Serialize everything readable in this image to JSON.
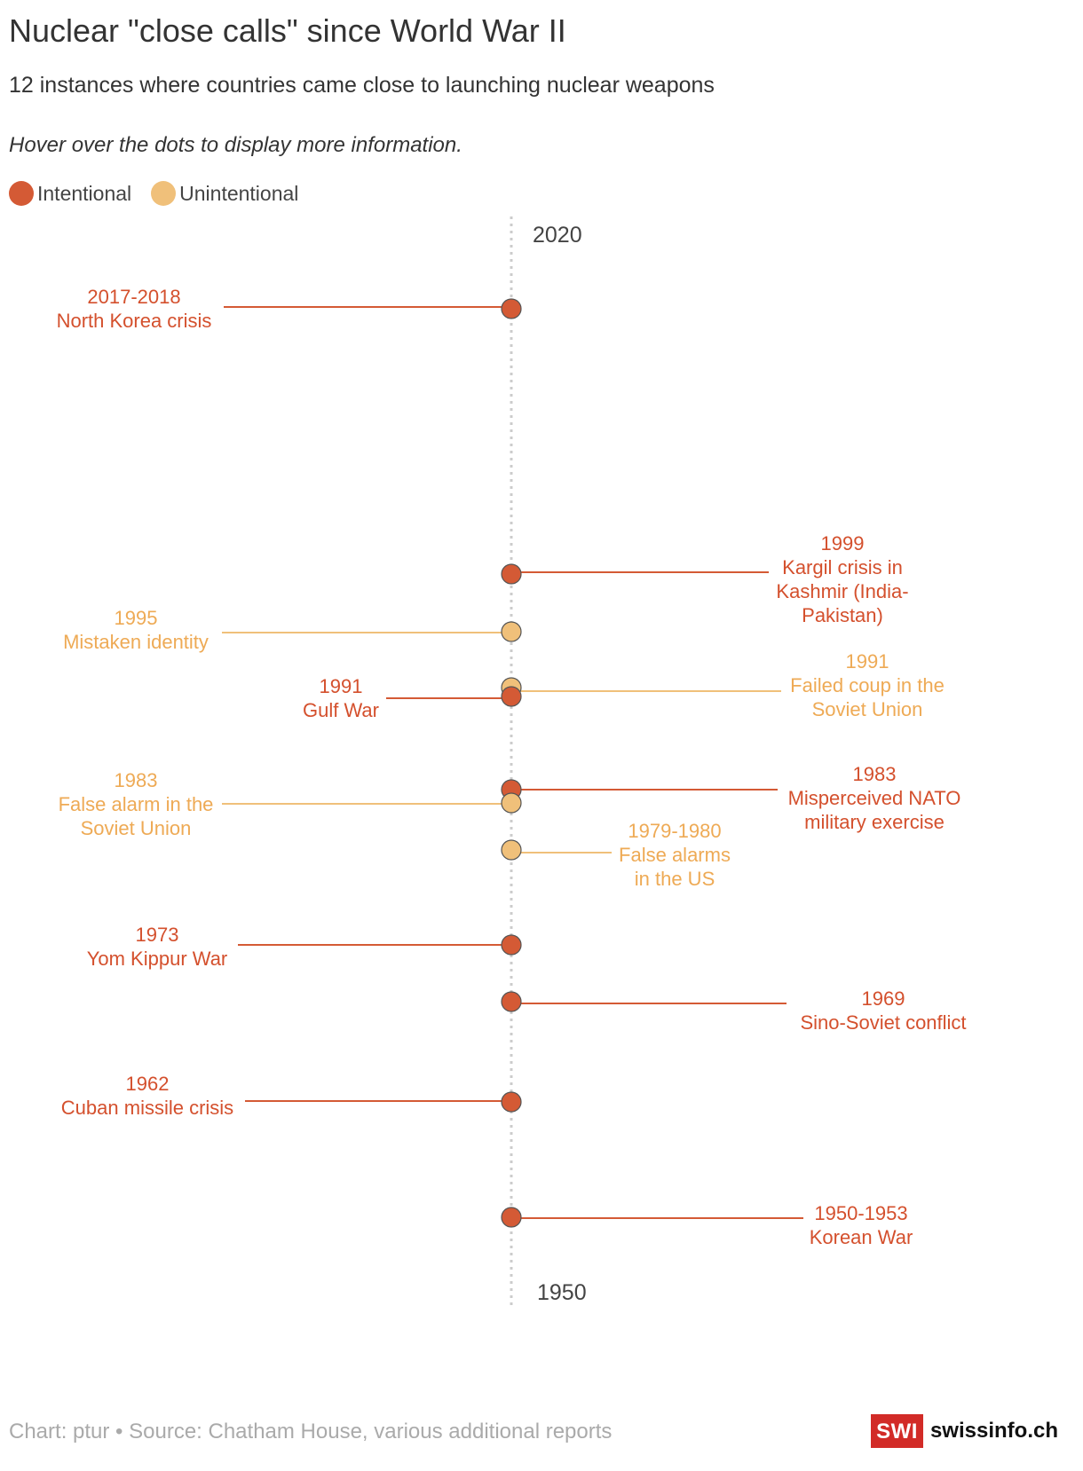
{
  "header": {
    "title": "Nuclear \"close calls\" since World War II",
    "subtitle": "12 instances where countries came close to launching nuclear weapons",
    "note": "Hover over the dots to display more information."
  },
  "legend": {
    "intentional_label": "Intentional",
    "unintentional_label": "Unintentional"
  },
  "colors": {
    "intentional": "#d45a35",
    "unintentional": "#f0c07a",
    "intentional_text": "#d4502d",
    "unintentional_text": "#eeaa55",
    "axis": "#cccccc"
  },
  "chart_data": {
    "type": "timeline",
    "axis_range": [
      1950,
      2020
    ],
    "axis_labels": {
      "top": "2020",
      "bottom": "1950"
    },
    "orientation": "vertical",
    "events": [
      {
        "year": "2017-2018",
        "name": "North Korea crisis",
        "category": "intentional",
        "side": "left",
        "lines": [
          "2017-2018",
          "North Korea crisis"
        ]
      },
      {
        "year": "1999",
        "name": "Kargil crisis in Kashmir (India-Pakistan)",
        "category": "intentional",
        "side": "right",
        "lines": [
          "1999",
          "Kargil crisis in",
          "Kashmir (India-",
          "Pakistan)"
        ]
      },
      {
        "year": "1995",
        "name": "Mistaken identity",
        "category": "unintentional",
        "side": "left",
        "lines": [
          "1995",
          "Mistaken identity"
        ]
      },
      {
        "year": "1991",
        "name": "Failed coup in the Soviet Union",
        "category": "unintentional",
        "side": "right",
        "lines": [
          "1991",
          "Failed coup in the",
          "Soviet Union"
        ]
      },
      {
        "year": "1991",
        "name": "Gulf War",
        "category": "intentional",
        "side": "left",
        "lines": [
          "1991",
          "Gulf War"
        ]
      },
      {
        "year": "1983",
        "name": "Misperceived NATO military exercise",
        "category": "intentional",
        "side": "right",
        "lines": [
          "1983",
          "Misperceived NATO",
          "military exercise"
        ]
      },
      {
        "year": "1983",
        "name": "False alarm in the Soviet Union",
        "category": "unintentional",
        "side": "left",
        "lines": [
          "1983",
          "False alarm in the",
          "Soviet Union"
        ]
      },
      {
        "year": "1979-1980",
        "name": "False alarms in the US",
        "category": "unintentional",
        "side": "right",
        "lines": [
          "1979-1980",
          "False alarms",
          "in the US"
        ]
      },
      {
        "year": "1973",
        "name": "Yom Kippur War",
        "category": "intentional",
        "side": "left",
        "lines": [
          "1973",
          "Yom Kippur War"
        ]
      },
      {
        "year": "1969",
        "name": "Sino-Soviet conflict",
        "category": "intentional",
        "side": "right",
        "lines": [
          "1969",
          "Sino-Soviet conflict"
        ]
      },
      {
        "year": "1962",
        "name": "Cuban missile crisis",
        "category": "intentional",
        "side": "left",
        "lines": [
          "1962",
          "Cuban missile crisis"
        ]
      },
      {
        "year": "1950-1953",
        "name": "Korean War",
        "category": "intentional",
        "side": "right",
        "lines": [
          "1950-1953",
          "Korean War"
        ]
      }
    ]
  },
  "footer": {
    "source": "Chart: ptur • Source: Chatham House, various additional reports",
    "logo_box": "SWI",
    "logo_text": "swissinfo.ch"
  }
}
